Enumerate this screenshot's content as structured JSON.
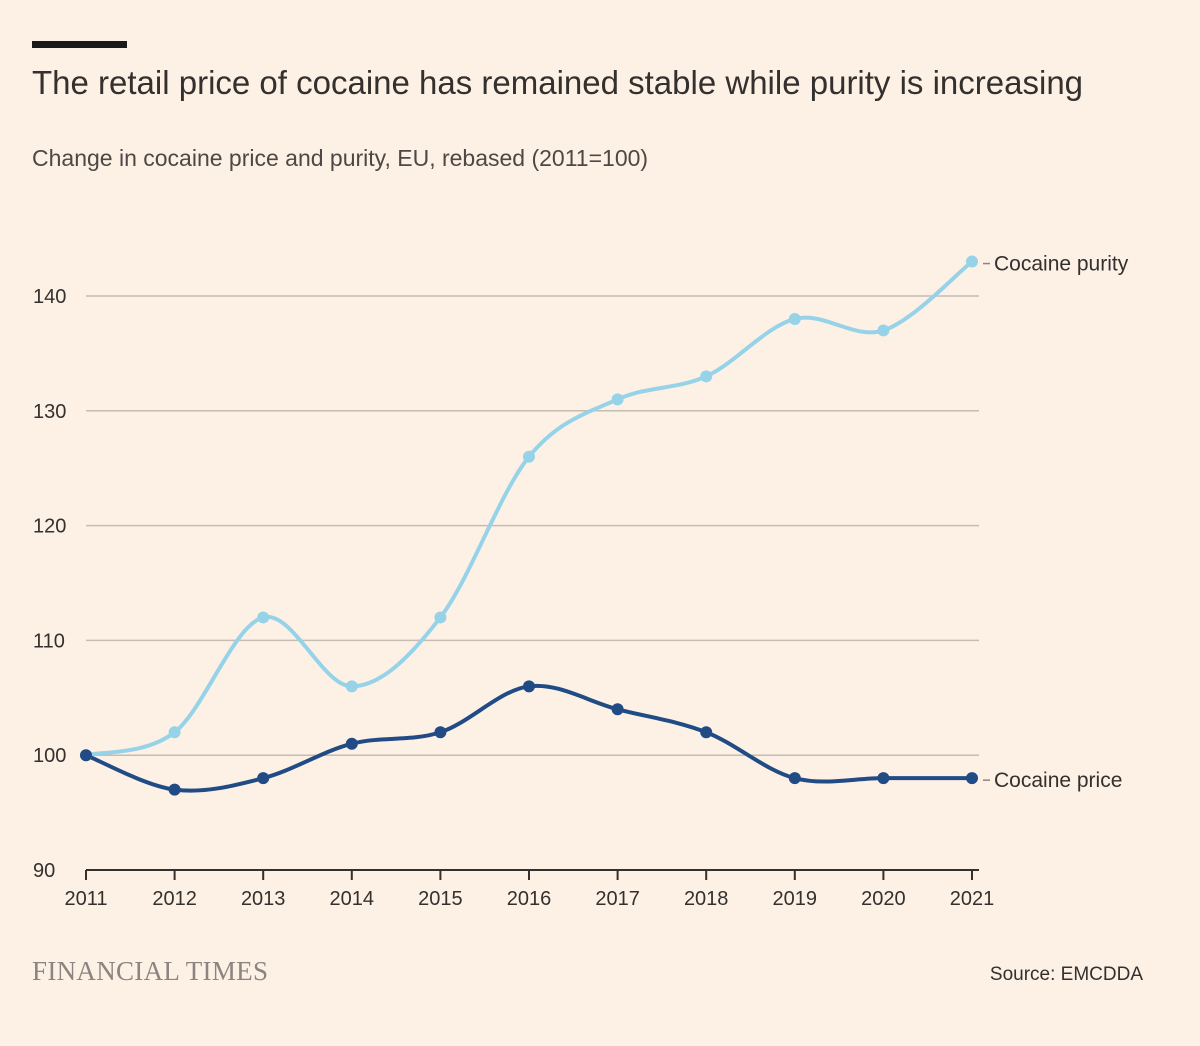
{
  "header": {
    "title": "The retail price of cocaine has remained stable while purity is increasing",
    "subtitle": "Change in cocaine price and purity, EU, rebased (2011=100)"
  },
  "footer": {
    "logo_text": "FINANCIAL TIMES",
    "source": "Source: EMCDDA"
  },
  "chart_data": {
    "type": "line",
    "title": "The retail price of cocaine has remained stable while purity is increasing",
    "subtitle": "Change in cocaine price and purity, EU, rebased (2011=100)",
    "x": [
      2011,
      2012,
      2013,
      2014,
      2015,
      2016,
      2017,
      2018,
      2019,
      2020,
      2021
    ],
    "series": [
      {
        "name": "Cocaine purity",
        "color": "#96D3E9",
        "values": [
          100,
          102,
          112,
          106,
          112,
          126,
          131,
          133,
          138,
          137,
          143
        ]
      },
      {
        "name": "Cocaine price",
        "color": "#204B85",
        "values": [
          100,
          97,
          98,
          101,
          102,
          106,
          104,
          102,
          98,
          98,
          98
        ]
      }
    ],
    "xlim": [
      2011,
      2021
    ],
    "ylim": [
      90,
      140
    ],
    "yticks": [
      90,
      100,
      110,
      120,
      130,
      140
    ],
    "xticks": [
      "2011",
      "2012",
      "2013",
      "2014",
      "2015",
      "2016",
      "2017",
      "2018",
      "2019",
      "2020",
      "2021"
    ],
    "grid": "horizontal",
    "legend": "direct-labels-right"
  }
}
